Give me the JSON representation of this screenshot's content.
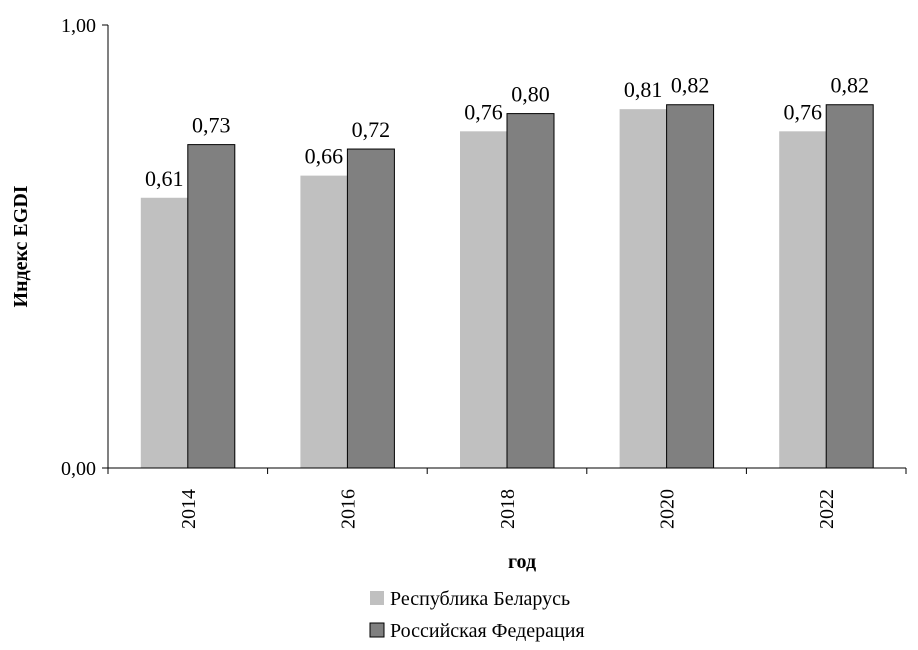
{
  "chart_data": {
    "type": "bar",
    "categories": [
      "2014",
      "2016",
      "2018",
      "2020",
      "2022"
    ],
    "series": [
      {
        "name": "Республика Беларусь",
        "values": [
          0.61,
          0.66,
          0.76,
          0.81,
          0.76
        ],
        "labels": [
          "0,61",
          "0,66",
          "0,76",
          "0,81",
          "0,76"
        ],
        "color": "#c0c0c0"
      },
      {
        "name": "Российская Федерация",
        "values": [
          0.73,
          0.72,
          0.8,
          0.82,
          0.82
        ],
        "labels": [
          "0,73",
          "0,72",
          "0,80",
          "0,82",
          "0,82"
        ],
        "color": "#808080"
      }
    ],
    "xlabel": "год",
    "ylabel": "Индекс EGDI",
    "ylim": [
      0,
      1
    ],
    "yticks": [
      {
        "value": 0,
        "label": "0,00"
      },
      {
        "value": 1,
        "label": "1,00"
      }
    ],
    "grid": false,
    "legend_position": "bottom"
  }
}
